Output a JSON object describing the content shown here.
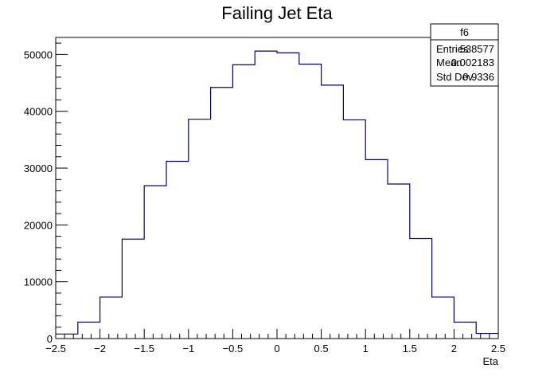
{
  "chart_data": {
    "type": "histogram",
    "title": "Failing Jet Eta",
    "xlabel": "Eta",
    "ylabel": "",
    "xlim": [
      -2.5,
      2.5
    ],
    "ylim": [
      0,
      53000
    ],
    "x_ticks": [
      -2.5,
      -2,
      -1.5,
      -1,
      -0.5,
      0,
      0.5,
      1,
      1.5,
      2,
      2.5
    ],
    "x_tick_labels": [
      "−2.5",
      "−2",
      "−1.5",
      "−1",
      "−0.5",
      "0",
      "0.5",
      "1",
      "1.5",
      "2",
      "2.5"
    ],
    "y_ticks": [
      0,
      10000,
      20000,
      30000,
      40000,
      50000
    ],
    "y_tick_labels": [
      "0",
      "10000",
      "20000",
      "30000",
      "40000",
      "50000"
    ],
    "bin_edges": [
      -2.5,
      -2.25,
      -2.0,
      -1.75,
      -1.5,
      -1.25,
      -1.0,
      -0.75,
      -0.5,
      -0.25,
      0.0,
      0.25,
      0.5,
      0.75,
      1.0,
      1.25,
      1.5,
      1.75,
      2.0,
      2.25,
      2.5
    ],
    "values": [
      800,
      2900,
      7300,
      17500,
      26900,
      31200,
      38600,
      44200,
      48200,
      50600,
      50300,
      48300,
      44600,
      38500,
      31500,
      27200,
      17600,
      7300,
      2900,
      900
    ],
    "line_color": "#000080",
    "grid": false,
    "stats_box": {
      "title": "f6",
      "rows": [
        {
          "label": "Entries",
          "value": "538577"
        },
        {
          "label": "Mean",
          "value": "0.002183"
        },
        {
          "label": "Std Dev",
          "value": "0.9336"
        }
      ],
      "placement": "top-right"
    }
  }
}
